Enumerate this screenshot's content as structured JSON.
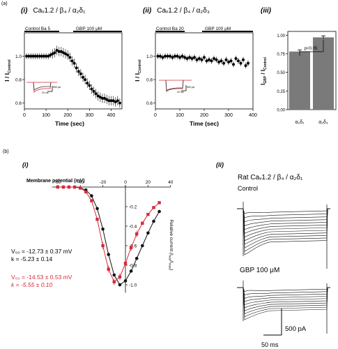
{
  "panel_a": {
    "label": "(a)",
    "i": {
      "tag": "(i)",
      "title": "Caᵥ1.2 / β₄ / α₂δ₁",
      "bar_left": "Control Ba 5",
      "bar_right": "GBP 100 μM",
      "y_label": "I / I",
      "y_label_sub": "Control",
      "x_label": "Time (sec)",
      "inset_scale": [
        "500 pA",
        "20 ms"
      ]
    },
    "ii": {
      "tag": "(ii)",
      "title": "Caᵥ1.2 / β₄ / α₂δ₃",
      "bar_left": "Control Ba 20",
      "bar_right": "GBP 100 μM",
      "y_label": "I / I",
      "y_label_sub": "Control",
      "x_label": "Time (sec)",
      "inset_scale": [
        "500 pA",
        "20 ms"
      ]
    },
    "iii": {
      "tag": "(iii)",
      "y_label": "I",
      "y_label_sub1": "GBP",
      "y_label_mid": " / I",
      "y_label_sub2": "Control",
      "significance": "p<0.05",
      "x_label_1": "α₂δ₁",
      "x_label_2": "α₂δ₃"
    }
  },
  "panel_b": {
    "label": "(b)",
    "i": {
      "tag": "(i)",
      "x_label": "Membrane potential (mV)",
      "y_label": "Relative current (I",
      "y_label_sub": "test",
      "y_label_mid": "/I",
      "y_label_sub2": "max",
      "y_label_end": ")",
      "black_v50": "V₅₀ = -12.73 ± 0.37  mV",
      "black_k": "k = -5.23 ± 0.14",
      "red_v50": "V₅₀ = -14.53 ± 0.53  mV",
      "red_k": "k = -5.55 ± 0.10"
    },
    "ii": {
      "tag": "(ii)",
      "title": "Rat Caᵥ1.2 / β₄ / α₂δ₁",
      "control_label": "Control",
      "gbp_label": "GBP 100 μM",
      "scale_current": "500 pA",
      "scale_time": "50 ms"
    }
  },
  "colors": {
    "red": "#d42a3a",
    "black": "#111111",
    "bar": "#7a7a7a"
  },
  "chart_data": [
    {
      "type": "scatter",
      "id": "time_course_a1",
      "xlabel": "Time (sec)",
      "ylabel": "I / I Control",
      "xlim": [
        0,
        450
      ],
      "ylim": [
        0.55,
        1.2
      ],
      "xticks": [
        0,
        100,
        200,
        300,
        400
      ],
      "yticks": [
        0.6,
        0.8,
        1.0
      ],
      "x": [
        10,
        20,
        30,
        40,
        50,
        60,
        70,
        80,
        90,
        100,
        110,
        120,
        130,
        140,
        150,
        160,
        170,
        180,
        190,
        200,
        210,
        220,
        230,
        240,
        250,
        260,
        270,
        280,
        290,
        300,
        310,
        320,
        330,
        340,
        350,
        360,
        370,
        380,
        390,
        400,
        410,
        420,
        430,
        440
      ],
      "y": [
        1.0,
        1.0,
        1.0,
        1.0,
        1.0,
        1.0,
        1.0,
        1.0,
        1.0,
        1.0,
        1.0,
        1.01,
        1.02,
        1.03,
        1.05,
        1.04,
        1.04,
        1.03,
        1.02,
        1.01,
        0.99,
        0.96,
        0.94,
        0.9,
        0.87,
        0.85,
        0.82,
        0.8,
        0.77,
        0.75,
        0.72,
        0.7,
        0.68,
        0.66,
        0.65,
        0.64,
        0.64,
        0.63,
        0.62,
        0.62,
        0.62,
        0.61,
        0.62,
        0.6
      ]
    },
    {
      "type": "scatter",
      "id": "time_course_a2",
      "xlabel": "Time (sec)",
      "ylabel": "I / I Control",
      "xlim": [
        0,
        400
      ],
      "ylim": [
        0.55,
        1.2
      ],
      "xticks": [
        0,
        100,
        200,
        300,
        400
      ],
      "yticks": [
        0.6,
        0.8,
        1.0
      ],
      "x": [
        10,
        20,
        30,
        40,
        50,
        60,
        70,
        80,
        90,
        100,
        110,
        120,
        130,
        140,
        150,
        160,
        170,
        180,
        190,
        200,
        210,
        220,
        230,
        240,
        250,
        260,
        270,
        280,
        290,
        300,
        310,
        320,
        330,
        340,
        350,
        360,
        370,
        380
      ],
      "y": [
        1.0,
        1.0,
        0.99,
        1.0,
        1.0,
        1.0,
        0.99,
        1.0,
        1.0,
        0.99,
        1.0,
        0.99,
        0.98,
        0.99,
        0.98,
        0.99,
        0.97,
        0.98,
        0.97,
        0.99,
        0.96,
        0.97,
        0.96,
        0.98,
        0.97,
        0.95,
        0.96,
        0.94,
        0.97,
        0.95,
        0.96,
        0.93,
        0.98,
        0.96,
        0.94,
        0.97,
        0.92,
        0.94
      ]
    },
    {
      "type": "bar",
      "id": "gbp_ratio",
      "ylabel": "I GBP / I Control",
      "ylim": [
        0,
        1.05
      ],
      "yticks": [
        0,
        0.25,
        0.5,
        0.75,
        1.0
      ],
      "categories": [
        "α₂δ₁",
        "α₂δ₃"
      ],
      "values": [
        0.78,
        0.97
      ],
      "errors": [
        0.02,
        0.02
      ]
    },
    {
      "type": "line",
      "id": "iv_curves",
      "xlabel": "Membrane potential (mV)",
      "ylabel": "Relative current (Itest/Imax)",
      "xlim": [
        -65,
        40
      ],
      "ylim": [
        -1.1,
        0.05
      ],
      "xticks": [
        -60,
        -40,
        -20,
        0,
        20,
        40
      ],
      "yticks": [
        -0.2,
        -0.4,
        -0.6,
        -0.8,
        -1.0
      ],
      "series": [
        {
          "color": "#111111",
          "x": [
            -60,
            -55,
            -50,
            -45,
            -40,
            -35,
            -30,
            -25,
            -20,
            -15,
            -10,
            -5,
            0,
            5,
            10,
            15,
            20,
            25,
            30
          ],
          "y": [
            0,
            0,
            0,
            0,
            -0.01,
            -0.03,
            -0.09,
            -0.22,
            -0.43,
            -0.69,
            -0.9,
            -1.0,
            -0.96,
            -0.86,
            -0.73,
            -0.6,
            -0.47,
            -0.35,
            -0.25
          ]
        },
        {
          "color": "#d42a3a",
          "x": [
            -60,
            -55,
            -50,
            -45,
            -40,
            -35,
            -30,
            -25,
            -20,
            -15,
            -10,
            -5,
            0,
            5,
            10,
            15,
            20,
            25,
            30
          ],
          "y": [
            0,
            0,
            0,
            0,
            -0.01,
            -0.05,
            -0.14,
            -0.33,
            -0.6,
            -0.84,
            -0.97,
            -0.92,
            -0.78,
            -0.62,
            -0.48,
            -0.37,
            -0.28,
            -0.21,
            -0.16
          ]
        }
      ]
    }
  ]
}
